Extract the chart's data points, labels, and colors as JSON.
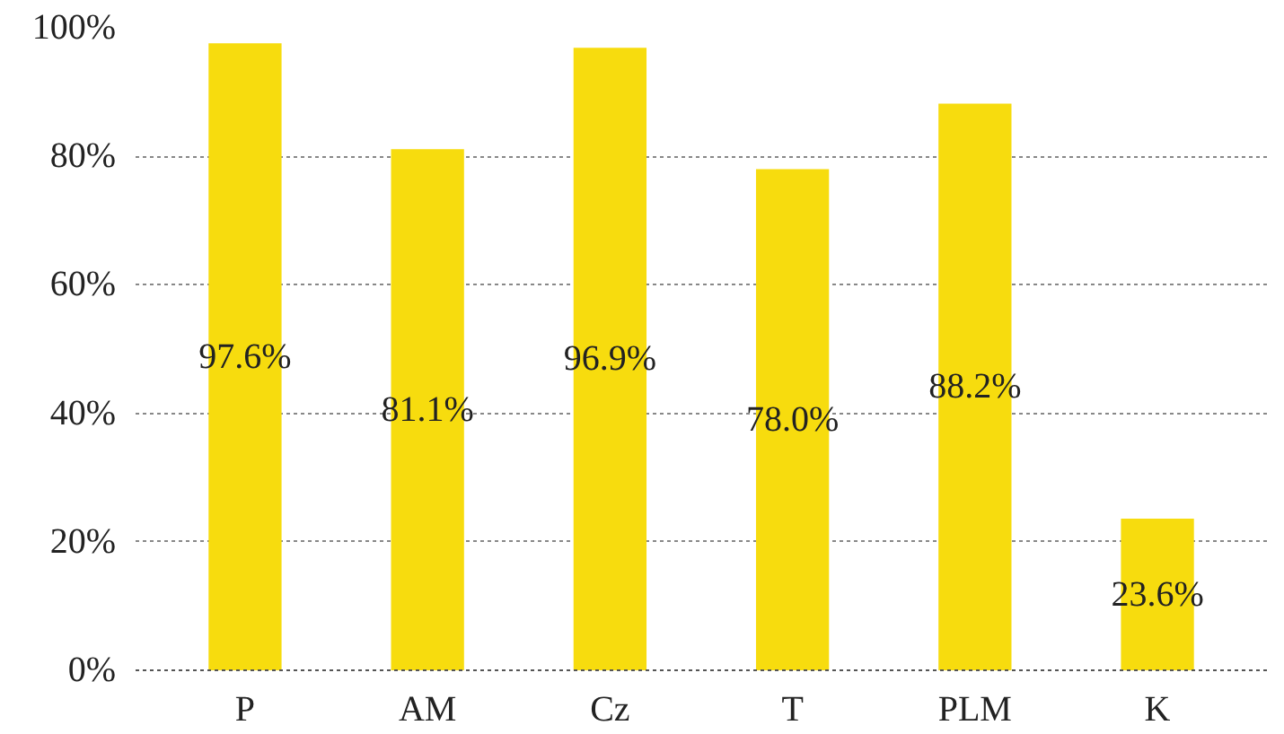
{
  "chart_data": {
    "type": "bar",
    "categories": [
      "P",
      "AM",
      "Cz",
      "T",
      "PLM",
      "K"
    ],
    "values": [
      97.6,
      81.1,
      96.9,
      78.0,
      88.2,
      23.6
    ],
    "color": "#f7dc0e",
    "ylim": [
      0,
      100
    ],
    "yticks": [
      {
        "value": 0,
        "label": "0%"
      },
      {
        "value": 20,
        "label": "20%"
      },
      {
        "value": 40,
        "label": "40%"
      },
      {
        "value": 60,
        "label": "60%"
      },
      {
        "value": 80,
        "label": "80%"
      },
      {
        "value": 100,
        "label": "100%"
      }
    ],
    "value_labels": [
      "97.6%",
      "81.1%",
      "96.9%",
      "78.0%",
      "88.2%",
      "23.6%"
    ],
    "grid": "y"
  }
}
